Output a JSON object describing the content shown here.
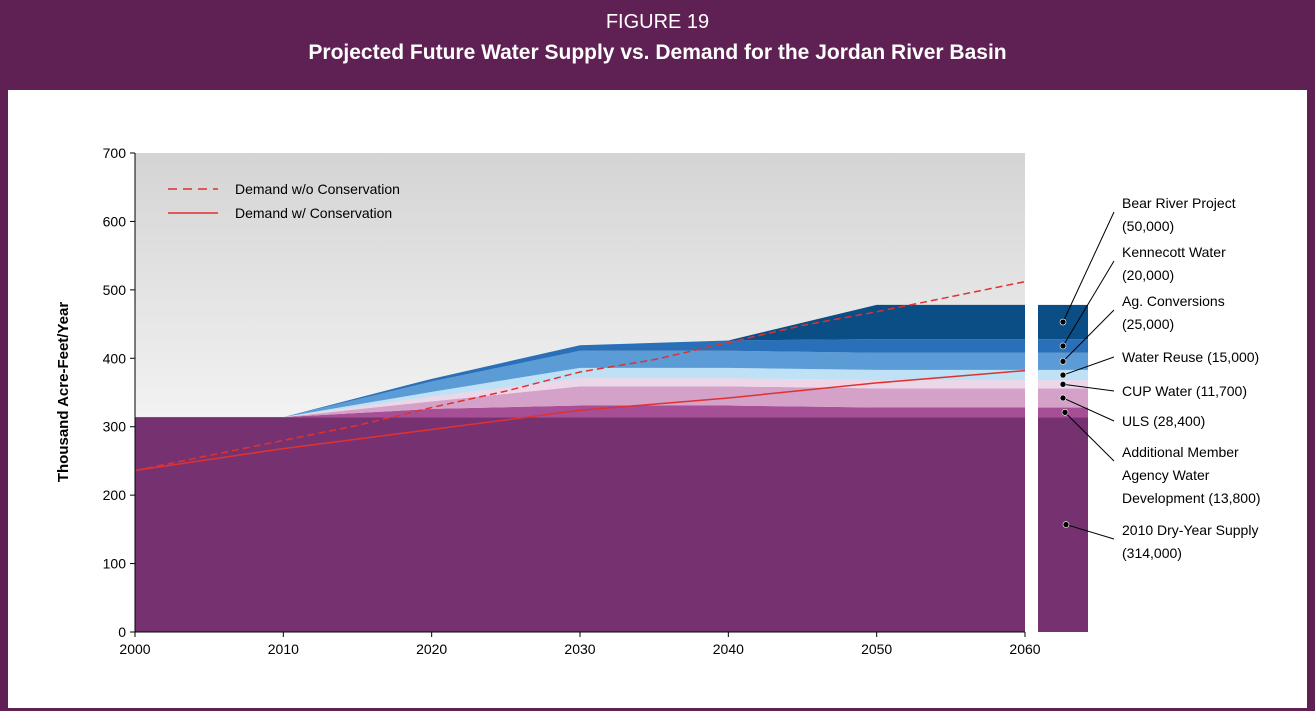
{
  "header": {
    "figure_number": "FIGURE 19",
    "title": "Projected Future Water Supply vs. Demand for the Jordan River Basin"
  },
  "chart_data": {
    "type": "area",
    "title": "Projected Future Water Supply vs. Demand for the Jordan River Basin",
    "xlabel": "",
    "ylabel": "Thousand Acre-Feet/Year",
    "xlim": [
      2000,
      2060
    ],
    "ylim": [
      0,
      700
    ],
    "x_ticks": [
      2000,
      2010,
      2020,
      2030,
      2040,
      2050,
      2060
    ],
    "y_ticks": [
      0,
      100,
      200,
      300,
      400,
      500,
      600,
      700
    ],
    "x_tick_labels": [
      "2000",
      "2010",
      "2020",
      "2030",
      "2040",
      "2050",
      "2060"
    ],
    "y_tick_labels": [
      "0",
      "100",
      "200",
      "300",
      "400",
      "500",
      "600",
      "700"
    ],
    "x": [
      2000,
      2010,
      2020,
      2030,
      2040,
      2050,
      2060
    ],
    "stacked_series": [
      {
        "label": "2010 Dry-Year Supply (314,000)",
        "color": "#763270",
        "values": [
          314,
          314,
          314,
          314,
          314,
          314,
          314
        ]
      },
      {
        "label": "Additional Member Agency Water Development (13,800)",
        "color": "#a64e96",
        "values": [
          0,
          0,
          12,
          17,
          17,
          14,
          14
        ]
      },
      {
        "label": "ULS (28,400)",
        "color": "#d4a1c9",
        "values": [
          0,
          0,
          11,
          28,
          28,
          28,
          28
        ]
      },
      {
        "label": "CUP Water (11,700)",
        "color": "#ecd6e8",
        "values": [
          0,
          0,
          7,
          12,
          12,
          12,
          12
        ]
      },
      {
        "label": "Water Reuse (15,000)",
        "color": "#bfe1f6",
        "values": [
          0,
          0,
          7,
          15,
          15,
          15,
          15
        ]
      },
      {
        "label": "Ag. Conversions (25,000)",
        "color": "#5b9bd6",
        "values": [
          0,
          0,
          15,
          25,
          25,
          25,
          25
        ]
      },
      {
        "label": "Kennecott Water (20,000)",
        "color": "#2a70b8",
        "values": [
          0,
          0,
          4,
          8,
          15,
          20,
          20
        ]
      },
      {
        "label": "Bear River Project (50,000)",
        "color": "#0b4d85",
        "values": [
          0,
          0,
          0,
          0,
          0,
          50,
          50
        ]
      }
    ],
    "lines": [
      {
        "name": "Demand w/o Conservation",
        "style": "dashed",
        "color": "#e03131",
        "x": [
          2000,
          2005,
          2010,
          2015,
          2020,
          2025,
          2030,
          2035,
          2040,
          2045,
          2050,
          2055,
          2060
        ],
        "values": [
          236,
          258,
          280,
          302,
          328,
          352,
          380,
          398,
          423,
          448,
          468,
          490,
          512
        ]
      },
      {
        "name": "Demand w/ Conservation",
        "style": "solid",
        "color": "#e03131",
        "x": [
          2000,
          2010,
          2020,
          2030,
          2040,
          2050,
          2060
        ],
        "values": [
          236,
          268,
          296,
          324,
          342,
          364,
          382
        ]
      }
    ],
    "annotations": [
      {
        "lines": [
          "Bear River Project",
          "(50,000)"
        ],
        "series_index": 7
      },
      {
        "lines": [
          "Kennecott Water",
          "(20,000)"
        ],
        "series_index": 6
      },
      {
        "lines": [
          "Ag. Conversions",
          "(25,000)"
        ],
        "series_index": 5
      },
      {
        "lines": [
          "Water Reuse (15,000)"
        ],
        "series_index": 4
      },
      {
        "lines": [
          "CUP Water (11,700)"
        ],
        "series_index": 3
      },
      {
        "lines": [
          "ULS (28,400)"
        ],
        "series_index": 2
      },
      {
        "lines": [
          "Additional Member",
          "Agency Water",
          "Development (13,800)"
        ],
        "series_index": 1
      },
      {
        "lines": [
          "2010 Dry-Year Supply",
          "(314,000)"
        ],
        "series_index": 0
      }
    ],
    "legend_position": "top-left",
    "grid": false,
    "background": "gradient gray to white"
  }
}
